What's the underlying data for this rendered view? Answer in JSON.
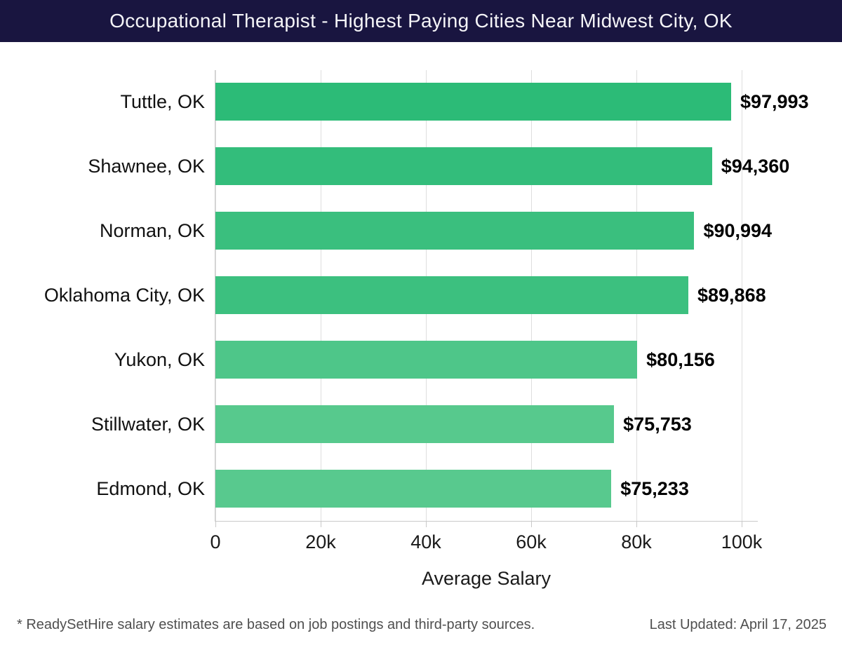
{
  "header": {
    "title": "Occupational Therapist - Highest Paying Cities Near Midwest City, OK",
    "bg_color": "#191540",
    "fg_color": "#f4f4f7"
  },
  "chart_data": {
    "type": "bar",
    "orientation": "horizontal",
    "title": "Occupational Therapist - Highest Paying Cities Near Midwest City, OK",
    "categories": [
      "Tuttle, OK",
      "Shawnee, OK",
      "Norman, OK",
      "Oklahoma City, OK",
      "Yukon, OK",
      "Stillwater, OK",
      "Edmond, OK"
    ],
    "values": [
      97993,
      94360,
      90994,
      89868,
      80156,
      75753,
      75233
    ],
    "value_labels": [
      "$97,993",
      "$94,360",
      "$90,994",
      "$89,868",
      "$80,156",
      "$75,753",
      "$75,233"
    ],
    "xlabel": "Average Salary",
    "ylabel": "",
    "xlim": [
      0,
      100000
    ],
    "xticks": [
      0,
      20000,
      40000,
      60000,
      80000,
      100000
    ],
    "xtick_labels": [
      "0",
      "20k",
      "40k",
      "60k",
      "80k",
      "100k"
    ],
    "grid": true,
    "legend": false,
    "bar_color_high_value": "#2cbb77",
    "bar_color_low_value": "#58c98e"
  },
  "footer": {
    "note": "* ReadySetHire salary estimates are based on job postings and third-party sources.",
    "last_updated": "Last Updated: April 17, 2025"
  }
}
